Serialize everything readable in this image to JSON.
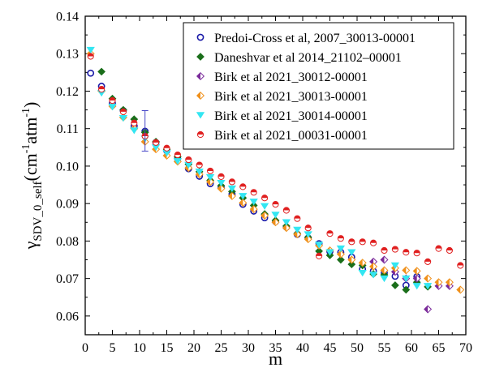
{
  "chart_data": {
    "type": "scatter",
    "title": "",
    "xlabel": "m",
    "ylabel": "γSDV_0_self(cm-1atm-1)",
    "ylabel_parts": {
      "symbol": "γ",
      "subscript": "SDV_0_self",
      "unit_open": "(cm",
      "unit_sup1": "-1",
      "unit_mid": "atm",
      "unit_sup2": "-1",
      "unit_close": ")"
    },
    "xlim": [
      0,
      70
    ],
    "ylim": [
      0.055,
      0.14
    ],
    "xticks": [
      "0",
      "5",
      "10",
      "15",
      "20",
      "25",
      "30",
      "35",
      "40",
      "45",
      "50",
      "55",
      "60",
      "65",
      "70"
    ],
    "yticks": [
      "0.06",
      "0.07",
      "0.08",
      "0.09",
      "0.10",
      "0.11",
      "0.12",
      "0.13",
      "0.14"
    ],
    "grid": false,
    "legend_position": "top-right",
    "series": [
      {
        "name": "Predoi-Cross et al, 2007_30013-00001",
        "marker": "circle-open",
        "color": "#1a1aa8",
        "points": [
          [
            1,
            0.1248
          ],
          [
            3,
            0.1213
          ],
          [
            5,
            0.1168
          ],
          [
            7,
            0.1148
          ],
          [
            9,
            0.1107
          ],
          [
            11,
            0.1093
          ],
          [
            13,
            0.1063
          ],
          [
            15,
            0.1041
          ],
          [
            17,
            0.102
          ],
          [
            19,
            0.0993
          ],
          [
            21,
            0.0973
          ],
          [
            23,
            0.0953
          ],
          [
            25,
            0.0944
          ],
          [
            27,
            0.0925
          ],
          [
            29,
            0.0898
          ],
          [
            31,
            0.088
          ],
          [
            33,
            0.0862
          ],
          [
            35,
            0.0852
          ],
          [
            37,
            0.0837
          ],
          [
            39,
            0.0818
          ],
          [
            41,
            0.0808
          ],
          [
            43,
            0.0793
          ],
          [
            45,
            0.0772
          ],
          [
            47,
            0.077
          ],
          [
            49,
            0.0757
          ],
          [
            51,
            0.0725
          ],
          [
            53,
            0.072
          ],
          [
            55,
            0.0715
          ],
          [
            57,
            0.0706
          ],
          [
            59,
            0.0682
          ],
          [
            61,
            0.0705
          ]
        ]
      },
      {
        "name": "Daneshvar et al 2014_21102–00001",
        "marker": "diamond-filled",
        "color": "#1a6e1a",
        "points": [
          [
            3,
            0.1252
          ],
          [
            5,
            0.118
          ],
          [
            7,
            0.115
          ],
          [
            9,
            0.1125
          ],
          [
            11,
            0.109
          ],
          [
            13,
            0.1065
          ],
          [
            15,
            0.1045
          ],
          [
            17,
            0.1025
          ],
          [
            19,
            0.1005
          ],
          [
            21,
            0.0985
          ],
          [
            23,
            0.0962
          ],
          [
            25,
            0.0948
          ],
          [
            27,
            0.0932
          ],
          [
            29,
            0.0915
          ],
          [
            31,
            0.0895
          ],
          [
            33,
            0.0872
          ],
          [
            35,
            0.0855
          ],
          [
            37,
            0.084
          ],
          [
            39,
            0.082
          ],
          [
            41,
            0.081
          ],
          [
            43,
            0.0773
          ],
          [
            45,
            0.0762
          ],
          [
            47,
            0.075
          ],
          [
            49,
            0.0738
          ],
          [
            51,
            0.0735
          ],
          [
            53,
            0.0712
          ],
          [
            55,
            0.071
          ],
          [
            57,
            0.0682
          ],
          [
            59,
            0.067
          ],
          [
            61,
            0.069
          ],
          [
            63,
            0.0678
          ]
        ]
      },
      {
        "name": "Birk et al 2021_30012-00001",
        "marker": "diamond-half",
        "color": "#7a2a9a",
        "points": [
          [
            53,
            0.0745
          ],
          [
            55,
            0.075
          ],
          [
            57,
            0.0718
          ],
          [
            59,
            0.07
          ],
          [
            61,
            0.07
          ],
          [
            63,
            0.0618
          ],
          [
            65,
            0.068
          ],
          [
            67,
            0.068
          ]
        ]
      },
      {
        "name": "Birk et al 2021_30013-00001",
        "marker": "diamond-half",
        "color": "#f0901a",
        "points": [
          [
            1,
            0.13
          ],
          [
            3,
            0.12
          ],
          [
            5,
            0.116
          ],
          [
            7,
            0.113
          ],
          [
            9,
            0.11
          ],
          [
            11,
            0.1065
          ],
          [
            13,
            0.1045
          ],
          [
            15,
            0.1028
          ],
          [
            17,
            0.1012
          ],
          [
            19,
            0.0995
          ],
          [
            21,
            0.0978
          ],
          [
            23,
            0.0958
          ],
          [
            25,
            0.094
          ],
          [
            27,
            0.092
          ],
          [
            29,
            0.0902
          ],
          [
            31,
            0.0885
          ],
          [
            33,
            0.0868
          ],
          [
            35,
            0.085
          ],
          [
            37,
            0.0835
          ],
          [
            39,
            0.0818
          ],
          [
            41,
            0.0805
          ],
          [
            43,
            0.0788
          ],
          [
            45,
            0.0775
          ],
          [
            47,
            0.0765
          ],
          [
            49,
            0.075
          ],
          [
            51,
            0.0742
          ],
          [
            53,
            0.0732
          ],
          [
            55,
            0.0722
          ],
          [
            57,
            0.0728
          ],
          [
            59,
            0.0722
          ],
          [
            61,
            0.072
          ],
          [
            63,
            0.07
          ],
          [
            65,
            0.069
          ],
          [
            67,
            0.069
          ],
          [
            69,
            0.067
          ]
        ]
      },
      {
        "name": "Birk et al 2021_30014-00001",
        "marker": "triangle-down",
        "color": "#33e6f2",
        "points": [
          [
            1,
            0.131
          ],
          [
            3,
            0.1195
          ],
          [
            5,
            0.1158
          ],
          [
            7,
            0.1128
          ],
          [
            9,
            0.1095
          ],
          [
            11,
            0.1073
          ],
          [
            13,
            0.105
          ],
          [
            15,
            0.1035
          ],
          [
            17,
            0.1013
          ],
          [
            19,
            0.1003
          ],
          [
            21,
            0.0985
          ],
          [
            23,
            0.097
          ],
          [
            25,
            0.0955
          ],
          [
            27,
            0.094
          ],
          [
            29,
            0.092
          ],
          [
            31,
            0.0905
          ],
          [
            33,
            0.0893
          ],
          [
            35,
            0.087
          ],
          [
            37,
            0.085
          ],
          [
            39,
            0.083
          ],
          [
            41,
            0.0818
          ],
          [
            43,
            0.079
          ],
          [
            45,
            0.077
          ],
          [
            47,
            0.078
          ],
          [
            49,
            0.077
          ],
          [
            51,
            0.0715
          ],
          [
            53,
            0.071
          ],
          [
            55,
            0.07
          ],
          [
            57,
            0.0735
          ],
          [
            59,
            0.07
          ],
          [
            61,
            0.068
          ],
          [
            63,
            0.068
          ]
        ]
      },
      {
        "name": "Birk et al 2021_00031-00001",
        "marker": "circle-half",
        "color": "#e02020",
        "points": [
          [
            1,
            0.1293
          ],
          [
            3,
            0.1205
          ],
          [
            5,
            0.1175
          ],
          [
            7,
            0.1145
          ],
          [
            9,
            0.1115
          ],
          [
            11,
            0.108
          ],
          [
            13,
            0.1063
          ],
          [
            15,
            0.1048
          ],
          [
            17,
            0.103
          ],
          [
            19,
            0.1017
          ],
          [
            21,
            0.1003
          ],
          [
            23,
            0.0987
          ],
          [
            25,
            0.0972
          ],
          [
            27,
            0.0958
          ],
          [
            29,
            0.0945
          ],
          [
            31,
            0.093
          ],
          [
            33,
            0.0915
          ],
          [
            35,
            0.0898
          ],
          [
            37,
            0.0882
          ],
          [
            39,
            0.086
          ],
          [
            41,
            0.0835
          ],
          [
            43,
            0.076
          ],
          [
            45,
            0.082
          ],
          [
            47,
            0.0807
          ],
          [
            49,
            0.0798
          ],
          [
            51,
            0.0798
          ],
          [
            53,
            0.0795
          ],
          [
            55,
            0.0775
          ],
          [
            57,
            0.0778
          ],
          [
            59,
            0.077
          ],
          [
            61,
            0.0768
          ],
          [
            63,
            0.0745
          ],
          [
            65,
            0.078
          ],
          [
            67,
            0.0775
          ],
          [
            69,
            0.0735
          ]
        ]
      }
    ],
    "error_bars": [
      {
        "x": 11,
        "y": 0.1093,
        "low": 0.104,
        "high": 0.1148,
        "color": "#4848c8"
      }
    ]
  }
}
